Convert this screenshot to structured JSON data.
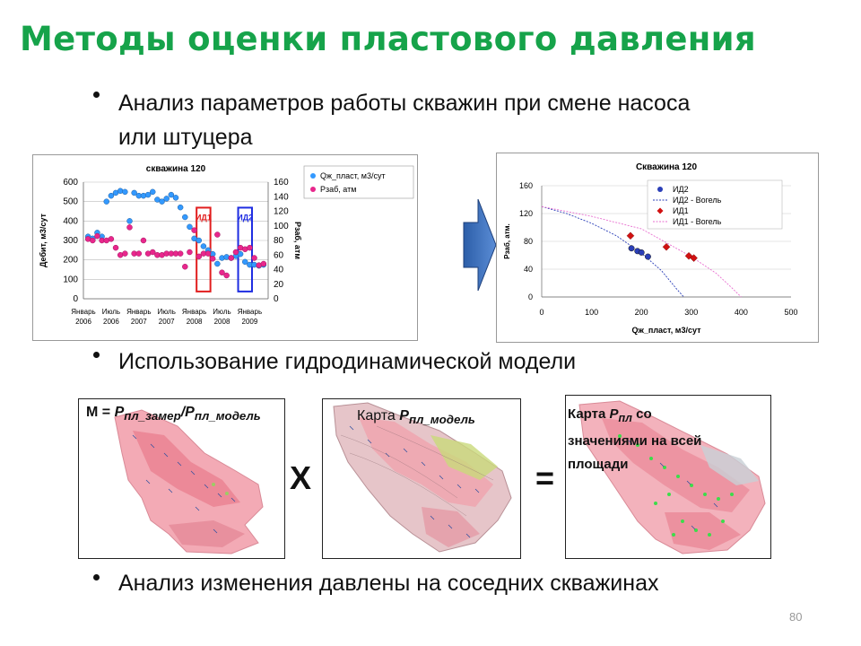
{
  "title": "Методы оценки пластового давления",
  "bullets": [
    "Анализ параметров работы скважин при смене насоса",
    "или штуцера",
    "Использование гидродинамической модели",
    "Анализ изменения давлены на соседних скважинах"
  ],
  "maps": {
    "m_label": "М = ",
    "m_p1": "P",
    "m_sub1": "пл_замер",
    "m_slash": "/P",
    "m_sub2": "пл_модель",
    "map2_prefix": "Карта ",
    "map2_p": "P",
    "map2_sub": "пл_модель",
    "map3_prefix": "Карта ",
    "map3_p": "P",
    "map3_sub": "пл",
    "map3_suffix": " со",
    "map3_line2": "значениями на всей",
    "map3_line3": "площади",
    "op_times": "Х",
    "op_equals": "="
  },
  "page_number": "80",
  "colors": {
    "title": "#16a34a",
    "series_rate": "#3399ff",
    "series_pressure": "#e8278c",
    "id1_box": "#e11d1d",
    "id2_box": "#1d2ce1",
    "id2_marker": "#2b3fb8",
    "id1_marker": "#d11111"
  },
  "chart_data": [
    {
      "type": "scatter",
      "title": "скважина 120",
      "ylabel": "Дебит, м3/сут",
      "y2label": "Рзаб, атм",
      "ylim": [
        0,
        600
      ],
      "y2lim": [
        0,
        160
      ],
      "yticks": [
        "0",
        "100",
        "200",
        "300",
        "400",
        "500",
        "600"
      ],
      "y2ticks": [
        "0",
        "20",
        "40",
        "60",
        "80",
        "100",
        "120",
        "140",
        "160"
      ],
      "xticks": [
        {
          "l1": "Январь",
          "l2": "2006"
        },
        {
          "l1": "Июль",
          "l2": "2006"
        },
        {
          "l1": "Январь",
          "l2": "2007"
        },
        {
          "l1": "Июль",
          "l2": "2007"
        },
        {
          "l1": "Январь",
          "l2": "2008"
        },
        {
          "l1": "Июль",
          "l2": "2008"
        },
        {
          "l1": "Январь",
          "l2": "2009"
        }
      ],
      "xlim": [
        0,
        40
      ],
      "legend": [
        "Qж_пласт, м3/сут",
        "Pзаб, атм"
      ],
      "legend_position": "top-right",
      "annotations": [
        {
          "text": "ИД1",
          "from": 24.5,
          "to": 27.5,
          "ylo": 10,
          "yhi": 125
        },
        {
          "text": "ИД2",
          "from": 33.5,
          "to": 36.5,
          "ylo": 10,
          "yhi": 125
        }
      ],
      "series": [
        {
          "name": "Qж_пласт, м3/сут",
          "axis": "left",
          "x": [
            1,
            2,
            3,
            4,
            5,
            6,
            7,
            8,
            9,
            10,
            11,
            12,
            13,
            14,
            15,
            16,
            17,
            18,
            19,
            20,
            21,
            22,
            23,
            24,
            25,
            26,
            27,
            28,
            29,
            30,
            31,
            32,
            33,
            34,
            35,
            36,
            37,
            38,
            39
          ],
          "y": [
            320,
            310,
            340,
            320,
            500,
            530,
            545,
            555,
            550,
            400,
            545,
            530,
            530,
            535,
            550,
            510,
            500,
            515,
            535,
            520,
            470,
            420,
            370,
            310,
            300,
            270,
            250,
            230,
            180,
            210,
            215,
            210,
            220,
            230,
            190,
            175,
            175,
            170,
            175
          ]
        },
        {
          "name": "Pзаб, атм",
          "axis": "right",
          "x": [
            1,
            2,
            3,
            4,
            5,
            6,
            7,
            8,
            9,
            10,
            11,
            12,
            13,
            14,
            15,
            16,
            17,
            18,
            19,
            20,
            21,
            22,
            23,
            24,
            25,
            26,
            27,
            28,
            29,
            30,
            31,
            32,
            33,
            34,
            35,
            36,
            37,
            38,
            39
          ],
          "y": [
            82,
            80,
            86,
            80,
            80,
            82,
            70,
            60,
            62,
            98,
            62,
            62,
            80,
            62,
            64,
            60,
            60,
            62,
            62,
            62,
            62,
            44,
            64,
            94,
            58,
            62,
            62,
            55,
            88,
            36,
            32,
            56,
            64,
            70,
            68,
            70,
            56,
            46,
            48
          ]
        }
      ]
    },
    {
      "type": "scatter",
      "title": "Скважина 120",
      "xlabel": "Qж_пласт, м3/сут",
      "ylabel": "Рзаб, атм.",
      "xlim": [
        0,
        500
      ],
      "ylim": [
        0,
        160
      ],
      "xticks": [
        "0",
        "100",
        "200",
        "300",
        "400",
        "500"
      ],
      "yticks": [
        "0",
        "40",
        "80",
        "120",
        "160"
      ],
      "legend": [
        "ИД2",
        "ИД2 - Вогель",
        "ИД1",
        "ИД1 - Вогель"
      ],
      "legend_position": "top-right",
      "series": [
        {
          "name": "ИД2",
          "x": [
            180,
            192,
            200,
            213
          ],
          "y": [
            70,
            66,
            64,
            58
          ]
        },
        {
          "name": "ИД1",
          "x": [
            178,
            250,
            295,
            305
          ],
          "y": [
            88,
            72,
            59,
            56
          ]
        },
        {
          "name": "ИД2 - Вогель",
          "x": [
            0,
            50,
            100,
            150,
            200,
            240,
            270,
            285
          ],
          "y": [
            130,
            120,
            106,
            88,
            63,
            38,
            12,
            0
          ]
        },
        {
          "name": "ИД1 - Вогель",
          "x": [
            0,
            100,
            200,
            300,
            350,
            380,
            400
          ],
          "y": [
            130,
            116,
            98,
            58,
            34,
            14,
            0
          ]
        }
      ]
    }
  ]
}
